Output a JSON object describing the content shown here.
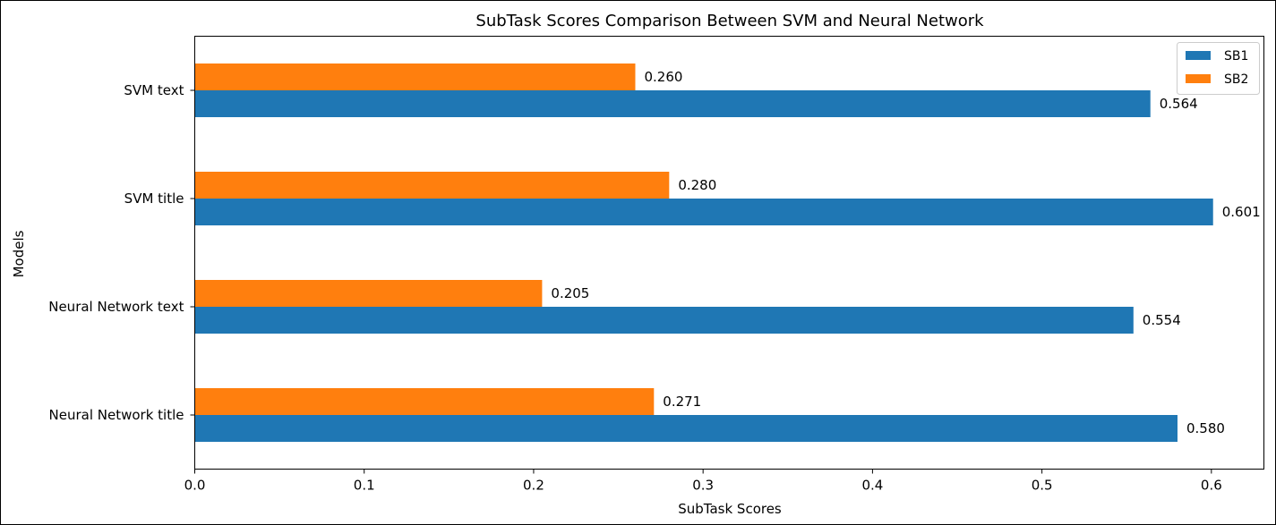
{
  "chart_data": {
    "type": "bar",
    "orientation": "horizontal",
    "title": "SubTask Scores Comparison Between SVM and Neural Network",
    "xlabel": "SubTask Scores",
    "ylabel": "Models",
    "categories": [
      "Neural Network title",
      "Neural Network text",
      "SVM title",
      "SVM text"
    ],
    "series": [
      {
        "name": "SB1",
        "color": "#1f77b4",
        "values": [
          0.58,
          0.554,
          0.601,
          0.564
        ],
        "labels": [
          "0.580",
          "0.554",
          "0.601",
          "0.564"
        ]
      },
      {
        "name": "SB2",
        "color": "#ff7f0e",
        "values": [
          0.271,
          0.205,
          0.28,
          0.26
        ],
        "labels": [
          "0.271",
          "0.205",
          "0.280",
          "0.260"
        ]
      }
    ],
    "xlim": [
      0,
      0.631
    ],
    "xticks": [
      "0.0",
      "0.1",
      "0.2",
      "0.3",
      "0.4",
      "0.5",
      "0.6"
    ],
    "grid": false,
    "legend_position": "top-right"
  }
}
